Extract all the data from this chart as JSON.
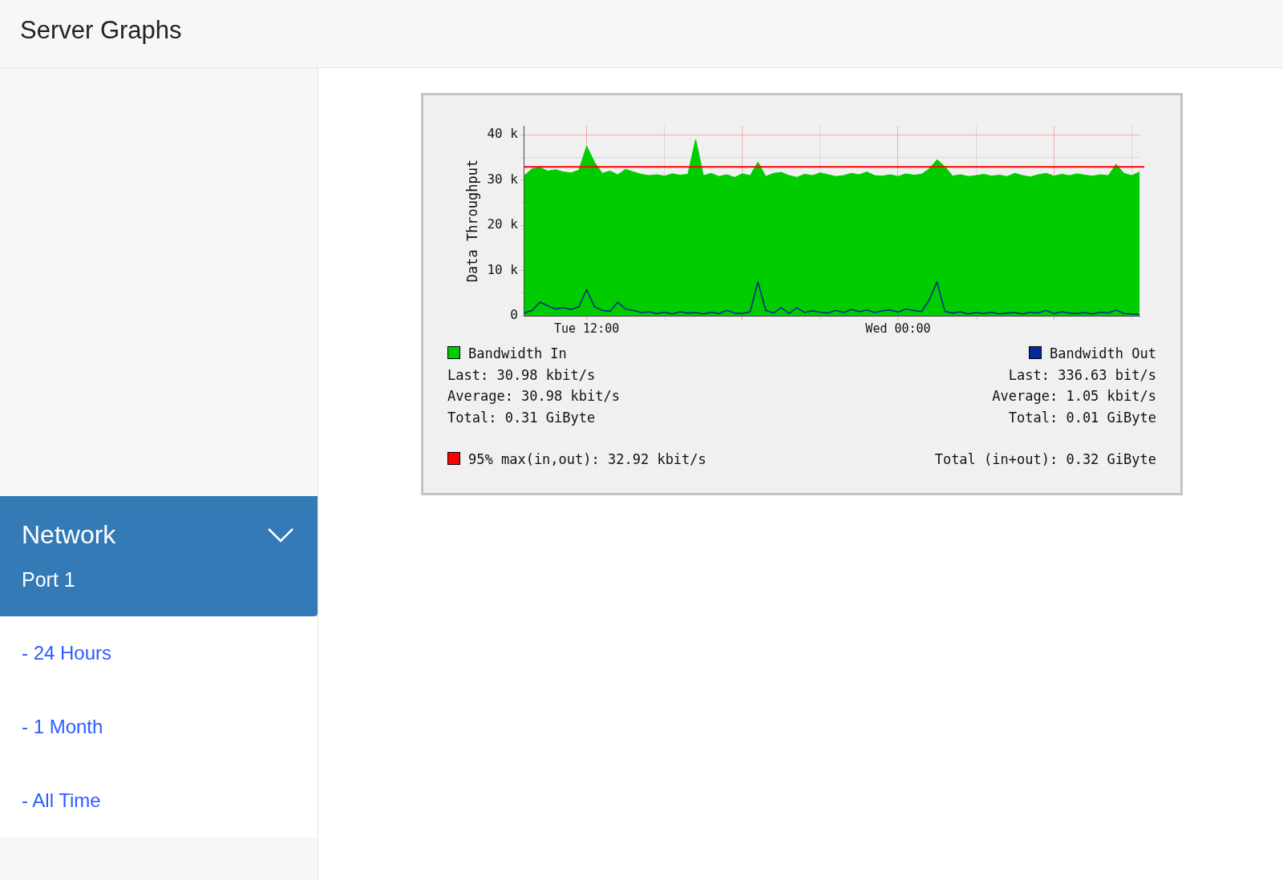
{
  "chart_data": {
    "type": "area",
    "title": "Server Graphs",
    "ylabel": "Data Throughput",
    "categories": [
      null,
      null,
      null,
      null,
      null,
      null,
      null,
      null,
      "Tue 12:00",
      null,
      null,
      null,
      null,
      null,
      null,
      null,
      null,
      null,
      null,
      null,
      null,
      null,
      null,
      null,
      null,
      null,
      null,
      null,
      null,
      null,
      null,
      null,
      null,
      null,
      null,
      null,
      null,
      null,
      null,
      null,
      null,
      null,
      null,
      null,
      null,
      null,
      null,
      null,
      "Wed 00:00",
      null,
      null,
      null,
      null,
      null,
      null,
      null,
      null,
      null,
      null,
      null,
      null,
      null,
      null,
      null,
      null,
      null,
      null,
      null,
      null,
      null,
      null,
      null,
      null,
      null,
      null,
      null,
      null,
      null,
      null,
      null
    ],
    "series": [
      {
        "name": "Bandwidth In",
        "type": "area",
        "color": "#00cc00",
        "values": [
          31,
          32.5,
          32.8,
          32,
          32.3,
          31.8,
          31.6,
          32.2,
          37.5,
          34,
          31.5,
          32,
          31.2,
          32.4,
          31.8,
          31.3,
          31,
          31.2,
          30.9,
          31.4,
          31.1,
          31.3,
          39,
          31,
          31.5,
          30.8,
          31.2,
          30.6,
          31.4,
          31,
          34,
          30.8,
          31.5,
          31.7,
          31,
          30.6,
          31.3,
          31,
          31.6,
          31.2,
          30.8,
          31,
          31.5,
          31.2,
          31.8,
          31,
          30.9,
          31.2,
          30.8,
          31.4,
          31.1,
          31.3,
          32.5,
          34.5,
          33,
          30.9,
          31.2,
          30.8,
          31,
          31.3,
          30.9,
          31.1,
          30.8,
          31.5,
          31,
          30.7,
          31.2,
          31.5,
          30.9,
          31.3,
          31,
          31.4,
          31.1,
          30.9,
          31.2,
          31,
          33.5,
          31.5,
          31,
          31.8
        ]
      },
      {
        "name": "Bandwidth Out",
        "type": "line",
        "color": "#002a97",
        "values": [
          0.6,
          1.2,
          3,
          2.2,
          1.5,
          1.8,
          1.4,
          2,
          5.8,
          2,
          1.2,
          1,
          3,
          1.5,
          1.2,
          0.7,
          0.9,
          0.5,
          0.8,
          0.4,
          0.9,
          0.6,
          0.7,
          0.4,
          0.8,
          0.5,
          1.2,
          0.6,
          0.5,
          0.9,
          7.5,
          1.2,
          0.6,
          1.8,
          0.5,
          1.8,
          0.7,
          1.1,
          0.8,
          0.6,
          1.2,
          0.7,
          1.4,
          0.9,
          1.3,
          0.7,
          1.1,
          1.3,
          0.8,
          1.5,
          1.2,
          0.9,
          3.5,
          7.5,
          1,
          0.6,
          0.9,
          0.4,
          0.7,
          0.5,
          0.8,
          0.4,
          0.6,
          0.7,
          0.4,
          0.8,
          0.6,
          1.2,
          0.5,
          0.9,
          0.6,
          0.5,
          0.7,
          0.4,
          0.8,
          0.6,
          1.3,
          0.5,
          0.4,
          0.3
        ]
      }
    ],
    "ylim": [
      0,
      42
    ],
    "yticks": [
      0,
      {
        "value": 5,
        "label": null
      },
      {
        "value": 10,
        "label": "10 k"
      },
      {
        "value": 15,
        "label": null
      },
      {
        "value": 20,
        "label": "20 k"
      },
      {
        "value": 25,
        "label": null
      },
      {
        "value": 30,
        "label": "30 k"
      },
      {
        "value": 35,
        "label": null
      },
      {
        "value": 40,
        "label": "40 k"
      }
    ],
    "ref_lines": [
      {
        "axis": "y",
        "value": 32.92,
        "label": "95% max(in,out): 32.92 kbit/s",
        "color": "#ff0000"
      }
    ],
    "grid": true,
    "legend": "bottom",
    "marker": "none",
    "line_style": "solid",
    "annotations": [
      "Last: 30.98 kbit/s",
      "Average: 30.98 kbit/s",
      "Total: 0.31 GiByte",
      "Last: 336.63 bit/s",
      "Average: 1.05 kbit/s",
      "Total: 0.01 GiByte",
      "Total (in+out): 0.32 GiByte",
      "Network",
      "Port 1",
      "- 24 Hours",
      "- 1 Month",
      "- All Time"
    ]
  }
}
